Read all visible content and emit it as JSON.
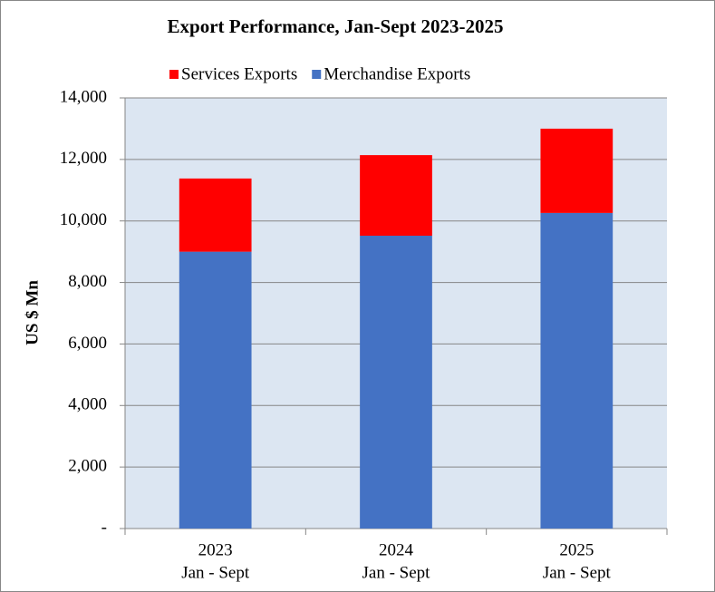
{
  "chart_data": {
    "type": "stacked-bar",
    "title": "Export Performance, Jan-Sept  2023-2025",
    "y_label": "US $ Mn",
    "categories": [
      [
        "2023",
        "Jan - Sept"
      ],
      [
        "2024",
        "Jan - Sept"
      ],
      [
        "2025",
        "Jan - Sept"
      ]
    ],
    "series": [
      {
        "name": "Merchandise Exports",
        "color": "#4472c4",
        "values": [
          9000,
          9520,
          10260
        ]
      },
      {
        "name": "Services Exports",
        "color": "#ff0000",
        "values": [
          2380,
          2620,
          2740
        ]
      }
    ],
    "ylim": [
      0,
      14000
    ],
    "yticks": [
      {
        "value": 0,
        "label": "-"
      },
      {
        "value": 2000,
        "label": "2,000"
      },
      {
        "value": 4000,
        "label": "4,000"
      },
      {
        "value": 6000,
        "label": "6,000"
      },
      {
        "value": 8000,
        "label": "8,000"
      },
      {
        "value": 10000,
        "label": "10,000"
      },
      {
        "value": 12000,
        "label": "12,000"
      },
      {
        "value": 14000,
        "label": "14,000"
      }
    ],
    "grid": true
  }
}
